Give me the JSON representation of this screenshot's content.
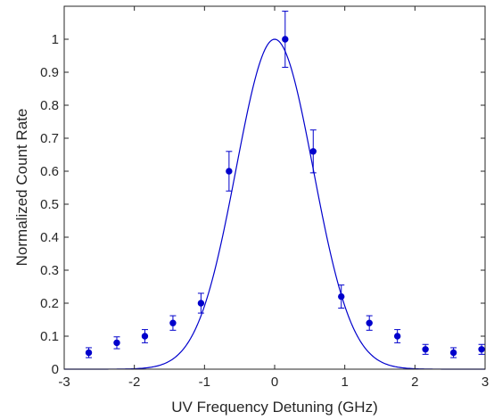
{
  "chart_data": {
    "type": "scatter",
    "title": "",
    "xlabel": "UV Frequency Detuning (GHz)",
    "ylabel": "Normalized Count Rate",
    "xlim": [
      -3,
      3
    ],
    "ylim": [
      0,
      1.1
    ],
    "xticks": [
      -3,
      -2,
      -1,
      0,
      1,
      2,
      3
    ],
    "yticks": [
      0,
      0.1,
      0.2,
      0.3,
      0.4,
      0.5,
      0.6,
      0.7,
      0.8,
      0.9,
      1
    ],
    "grid": false,
    "legend": "none",
    "color": "#0000cc",
    "series": [
      {
        "kind": "points-with-errorbars",
        "x": [
          -2.65,
          -2.25,
          -1.85,
          -1.45,
          -1.05,
          -0.65,
          0.15,
          0.55,
          0.95,
          1.35,
          1.75,
          2.15,
          2.55,
          2.95
        ],
        "y": [
          0.05,
          0.08,
          0.1,
          0.14,
          0.2,
          0.6,
          1.0,
          0.66,
          0.22,
          0.14,
          0.1,
          0.06,
          0.05,
          0.06
        ],
        "error": [
          0.015,
          0.018,
          0.02,
          0.022,
          0.03,
          0.06,
          0.085,
          0.065,
          0.035,
          0.022,
          0.02,
          0.015,
          0.015,
          0.015
        ]
      },
      {
        "kind": "fit-curve",
        "model": "gaussian",
        "center": 0,
        "amplitude": 1.0,
        "sigma": 0.55
      }
    ]
  }
}
